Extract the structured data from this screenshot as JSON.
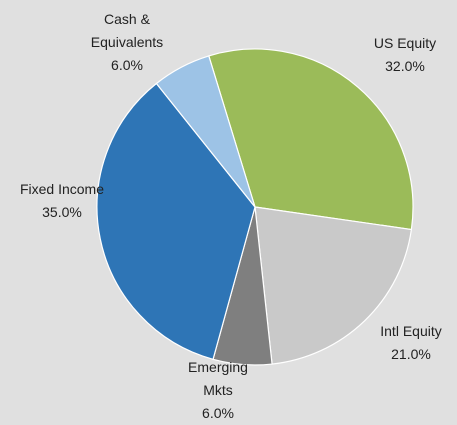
{
  "chart_data": {
    "type": "pie",
    "categories": [
      "US Equity",
      "Intl Equity",
      "Emerging Mkts",
      "Fixed Income",
      "Cash & Equivalents"
    ],
    "values": [
      32,
      21,
      6,
      35,
      6
    ],
    "value_labels": [
      "32.0%",
      "21.0%",
      "6.0%",
      "35.0%",
      "6.0%"
    ],
    "colors": [
      "#9bbb59",
      "#c9c9c9",
      "#7f7f7f",
      "#2e75b6",
      "#9dc3e6"
    ]
  }
}
